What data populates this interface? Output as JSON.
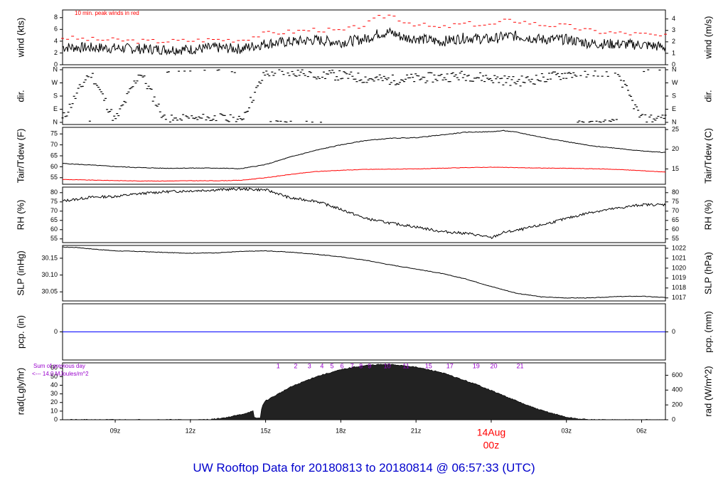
{
  "footer": {
    "title": "UW Rooftop Data for 20180813  to  20180814 @ 06:57:33  (UTC)",
    "color": "#0000cc"
  },
  "colors": {
    "trace": "#000000",
    "peak": "#ff0000",
    "dew": "#ff0000",
    "precip": "#0000ff",
    "solar_labels": "#9900cc",
    "date_label": "#ff0000"
  },
  "x_axis": {
    "unit": "UTC hour",
    "range": [
      6.9,
      30.95
    ],
    "ticks": [
      {
        "hour": 9,
        "label": "09z"
      },
      {
        "hour": 12,
        "label": "12z"
      },
      {
        "hour": 15,
        "label": "15z"
      },
      {
        "hour": 18,
        "label": "18z"
      },
      {
        "hour": 21,
        "label": "21z"
      },
      {
        "hour": 27,
        "label": "03z"
      },
      {
        "hour": 30,
        "label": "06z"
      }
    ],
    "midnight": {
      "hour": 24,
      "date_label": "14Aug",
      "hour_label": "00z"
    }
  },
  "chart_data": [
    {
      "type": "line",
      "panel": "wind",
      "ylabel_left": "wind (kts)",
      "ylabel_right": "wind (m/s)",
      "ylim": [
        0,
        9.3
      ],
      "left_ticks": [
        0,
        2,
        4,
        6,
        8
      ],
      "right_ticks": [
        0,
        1,
        2,
        3,
        4
      ],
      "annotation": "10 min. peak winds in red",
      "series": [
        {
          "role": "wind speed",
          "x": [
            6.9,
            8,
            9,
            10,
            11,
            12,
            13,
            14,
            15,
            16,
            17,
            18,
            19,
            19.5,
            20,
            20.5,
            21,
            22,
            22.5,
            23,
            24,
            24.5,
            25,
            26,
            27,
            28,
            29,
            30,
            30.95
          ],
          "y": [
            3.0,
            2.9,
            2.8,
            2.7,
            2.6,
            2.6,
            2.9,
            2.7,
            3.6,
            3.9,
            4.2,
            3.8,
            4.4,
            5.3,
            5.5,
            4.6,
            4.5,
            3.9,
            4.3,
            4.6,
            4.3,
            4.8,
            4.9,
            4.3,
            4.3,
            3.6,
            3.5,
            3.4,
            3.0
          ]
        },
        {
          "role": "10 min peak",
          "x": [
            6.9,
            8,
            9,
            10,
            11,
            12,
            13,
            14,
            15,
            16,
            17,
            18,
            19,
            19.5,
            20,
            20.5,
            21,
            22,
            22.5,
            23,
            24,
            24.5,
            25,
            26,
            27,
            28,
            29,
            30,
            30.95
          ],
          "y": [
            4.6,
            4.3,
            4.2,
            4.0,
            4.0,
            4.1,
            4.3,
            4.2,
            5.3,
            5.6,
            6.0,
            5.7,
            6.8,
            8.0,
            8.5,
            7.4,
            6.9,
            6.2,
            6.7,
            7.0,
            6.7,
            7.4,
            7.5,
            6.8,
            6.6,
            5.7,
            5.4,
            5.2,
            4.8
          ]
        }
      ]
    },
    {
      "type": "scatter",
      "panel": "direction",
      "ylabel_left": "dir.",
      "ylabel_right": "dir.",
      "left_ticks": [
        "N",
        "W",
        "S",
        "E",
        "N"
      ],
      "right_ticks": [
        "N",
        "W",
        "S",
        "E",
        "N"
      ],
      "ylim": [
        0,
        360
      ],
      "series": [
        {
          "role": "wind direction (deg)",
          "x": [
            6.9,
            8,
            9,
            10,
            11,
            12,
            13,
            14,
            15,
            16,
            17,
            18,
            19,
            20,
            21,
            22,
            23,
            24,
            25,
            26,
            27,
            28,
            29,
            30,
            30.95
          ],
          "y": [
            20,
            350,
            10,
            345,
            15,
            20,
            30,
            10,
            340,
            350,
            330,
            320,
            300,
            290,
            300,
            310,
            320,
            300,
            280,
            300,
            330,
            345,
            350,
            20,
            30
          ]
        }
      ]
    },
    {
      "type": "line",
      "panel": "temperature",
      "ylabel_left": "Tair/Tdew (F)",
      "ylabel_right": "Tair/Tdew (C)",
      "ylim": [
        52,
        78
      ],
      "left_ticks": [
        55,
        60,
        65,
        70,
        75
      ],
      "right_ticks": [
        15,
        20,
        25
      ],
      "series": [
        {
          "role": "air temperature",
          "x": [
            6.9,
            8,
            9,
            10,
            11,
            12,
            13,
            14,
            15,
            16,
            17,
            18,
            19,
            20,
            21,
            22,
            23,
            24,
            24.5,
            25,
            26,
            27,
            28,
            29,
            30,
            30.95
          ],
          "y": [
            61.5,
            60.8,
            60.1,
            59.6,
            59.3,
            59.4,
            59.4,
            59.1,
            61.0,
            64.5,
            67.5,
            70.0,
            72.0,
            73.0,
            73.3,
            74.5,
            75.8,
            76.0,
            76.5,
            75.8,
            73.5,
            71.5,
            69.5,
            68.5,
            67.2,
            66.5
          ]
        },
        {
          "role": "dew point",
          "x": [
            6.9,
            8,
            9,
            10,
            11,
            12,
            13,
            14,
            15,
            16,
            17,
            18,
            19,
            20,
            21,
            22,
            23,
            24,
            25,
            26,
            27,
            28,
            29,
            30,
            30.95
          ],
          "y": [
            54.2,
            53.9,
            53.7,
            53.5,
            53.5,
            53.6,
            53.6,
            53.8,
            55.0,
            56.5,
            57.8,
            58.4,
            58.8,
            58.9,
            59.0,
            59.3,
            59.6,
            59.8,
            59.6,
            59.4,
            59.3,
            59.1,
            58.8,
            58.2,
            57.6
          ]
        }
      ]
    },
    {
      "type": "line",
      "panel": "humidity",
      "ylabel_left": "RH (%)",
      "ylabel_right": "RH (%)",
      "ylim": [
        53,
        83
      ],
      "left_ticks": [
        55,
        60,
        65,
        70,
        75,
        80
      ],
      "right_ticks": [
        55,
        60,
        65,
        70,
        75,
        80
      ],
      "series": [
        {
          "role": "relative humidity",
          "x": [
            6.9,
            7.5,
            8,
            9,
            10,
            11,
            12,
            13,
            14,
            15,
            15.5,
            16,
            17,
            18,
            19,
            20,
            21,
            22,
            23,
            23.5,
            24,
            24.5,
            25,
            26,
            27,
            28,
            29,
            30,
            30.95
          ],
          "y": [
            75.5,
            76.5,
            77.5,
            78.0,
            79.5,
            80.5,
            81.0,
            81.5,
            82.0,
            81.5,
            79.5,
            77.0,
            75.5,
            71.0,
            66.0,
            63.5,
            61.5,
            59.0,
            58.0,
            57.0,
            55.5,
            58.5,
            59.5,
            62.5,
            66.0,
            69.5,
            71.5,
            73.5,
            73.5
          ]
        }
      ]
    },
    {
      "type": "line",
      "panel": "pressure",
      "ylabel_left": "SLP (inHg)",
      "ylabel_right": "SLP (hPa)",
      "ylim": [
        30.023,
        30.188
      ],
      "left_ticks": [
        30.05,
        30.1,
        30.15
      ],
      "right_ticks": [
        1017,
        1018,
        1019,
        1020,
        1021,
        1022
      ],
      "series": [
        {
          "role": "sea level pressure",
          "x": [
            6.9,
            7.5,
            8,
            9,
            10,
            11,
            12,
            13,
            14,
            15,
            16,
            17,
            18,
            19,
            20,
            21,
            22,
            23,
            24,
            25,
            26,
            27,
            28,
            29,
            30,
            30.95
          ],
          "y": [
            30.183,
            30.182,
            30.178,
            30.172,
            30.17,
            30.167,
            30.165,
            30.166,
            30.17,
            30.172,
            30.168,
            30.162,
            30.154,
            30.144,
            30.13,
            30.118,
            30.105,
            30.088,
            30.066,
            30.046,
            30.035,
            30.032,
            30.032,
            30.036,
            30.037,
            30.033
          ]
        }
      ]
    },
    {
      "type": "line",
      "panel": "precipitation",
      "ylabel_left": "pcp. (in)",
      "ylabel_right": "pcp. (mm)",
      "left_ticks": [
        0
      ],
      "right_ticks": [
        0
      ],
      "series": [
        {
          "role": "precipitation",
          "x": [
            6.9,
            30.95
          ],
          "y": [
            0,
            0
          ]
        }
      ]
    },
    {
      "type": "area",
      "panel": "radiation",
      "ylabel_left": "rad(Lgly/hr)",
      "ylabel_right": "rad (W/m^2)",
      "ylim": [
        0,
        66
      ],
      "left_ticks": [
        0,
        10,
        20,
        30,
        40,
        50,
        60
      ],
      "right_ticks": [
        0,
        200,
        400,
        600
      ],
      "previous_day_note": [
        "Sum of previous day",
        "<--- 14.0 MJoules/m^2"
      ],
      "solar_hour_marks": [
        {
          "hour": 15.5,
          "label": "1"
        },
        {
          "hour": 16.2,
          "label": "2"
        },
        {
          "hour": 16.75,
          "label": "3"
        },
        {
          "hour": 17.25,
          "label": "4"
        },
        {
          "hour": 17.65,
          "label": "5"
        },
        {
          "hour": 18.05,
          "label": "6"
        },
        {
          "hour": 18.45,
          "label": "7"
        },
        {
          "hour": 18.8,
          "label": "8"
        },
        {
          "hour": 19.15,
          "label": "9"
        },
        {
          "hour": 19.85,
          "label": "10"
        },
        {
          "hour": 20.6,
          "label": "11"
        },
        {
          "hour": 21.5,
          "label": "15"
        },
        {
          "hour": 22.35,
          "label": "17"
        },
        {
          "hour": 23.4,
          "label": "19"
        },
        {
          "hour": 24.1,
          "label": "20"
        },
        {
          "hour": 25.15,
          "label": "21"
        }
      ],
      "series": [
        {
          "role": "solar radiation",
          "x": [
            6.9,
            12.5,
            13,
            13.5,
            14,
            14.5,
            14.55,
            14.8,
            14.85,
            15,
            15.5,
            16,
            16.5,
            17,
            17.5,
            18,
            18.5,
            19,
            19.5,
            20,
            20.5,
            21,
            21.5,
            22,
            22.5,
            23,
            23.5,
            24,
            24.5,
            25,
            25.5,
            26,
            26.5,
            27,
            27.5,
            28,
            30.95
          ],
          "y": [
            0,
            0,
            1,
            3,
            6,
            10,
            2,
            2,
            16,
            22,
            30,
            38,
            44,
            50,
            54,
            58,
            61,
            63,
            64,
            64,
            63,
            61,
            58,
            55,
            50,
            45,
            40,
            34,
            28,
            22,
            16,
            11,
            7,
            3,
            1,
            0,
            0
          ]
        }
      ]
    }
  ]
}
